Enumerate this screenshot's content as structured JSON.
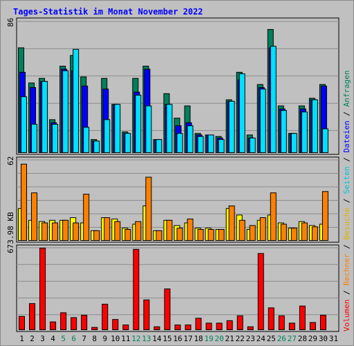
{
  "title": "Tages-Statistik im Monat November 2022",
  "colors": {
    "anfragen": "#00805c",
    "dateien": "#0000ff",
    "seiten": "#00e0ff",
    "besuche": "#ffff00",
    "rechner": "#ff8000",
    "volumen": "#ff0000",
    "weekend_label": "#00805c",
    "weekday_label": "#000000"
  },
  "axis_labels": {
    "anfragen_max": "86",
    "besuche_max": "62",
    "volumen_max": "673.98 KB"
  },
  "legend": {
    "volumen": "Volumen",
    "rechner": "Rechner",
    "besuche": "Besuche",
    "seiten": "Seiten",
    "dateien": "Dateien",
    "anfragen": "Anfragen",
    "sep": "/"
  },
  "chart_data": [
    {
      "type": "bar",
      "panel": "requests",
      "ylim": [
        0,
        86
      ],
      "categories": [
        "1",
        "2",
        "3",
        "4",
        "5",
        "6",
        "7",
        "8",
        "9",
        "10",
        "11",
        "12",
        "13",
        "14",
        "15",
        "16",
        "17",
        "18",
        "19",
        "20",
        "21",
        "22",
        "23",
        "24",
        "25",
        "26",
        "27",
        "28",
        "29",
        "30",
        "31"
      ],
      "weekend_days": [
        "5",
        "6",
        "12",
        "13",
        "19",
        "20",
        "26",
        "27"
      ],
      "series": [
        {
          "name": "Anfragen",
          "values": [
            69,
            46,
            49,
            22,
            57,
            64,
            50,
            9,
            49,
            32,
            14,
            49,
            57,
            9,
            39,
            23,
            31,
            13,
            12,
            11,
            35,
            53,
            12,
            45,
            81,
            31,
            13,
            31,
            36,
            45,
            0
          ]
        },
        {
          "name": "Dateien",
          "values": [
            53,
            43,
            47,
            20,
            55,
            54,
            44,
            8,
            42,
            32,
            13,
            40,
            55,
            9,
            32,
            18,
            20,
            12,
            12,
            10,
            34,
            48,
            10,
            43,
            69,
            29,
            13,
            29,
            35,
            44,
            0
          ]
        },
        {
          "name": "Seiten",
          "values": [
            37,
            19,
            47,
            19,
            54,
            68,
            17,
            8,
            22,
            32,
            13,
            38,
            31,
            9,
            32,
            13,
            18,
            11,
            12,
            9,
            34,
            52,
            10,
            42,
            70,
            28,
            13,
            27,
            35,
            16,
            0
          ]
        }
      ]
    },
    {
      "type": "bar",
      "panel": "visits",
      "ylim": [
        0,
        62
      ],
      "categories": [
        "1",
        "2",
        "3",
        "4",
        "5",
        "6",
        "7",
        "8",
        "9",
        "10",
        "11",
        "12",
        "13",
        "14",
        "15",
        "16",
        "17",
        "18",
        "19",
        "20",
        "21",
        "22",
        "23",
        "24",
        "25",
        "26",
        "27",
        "28",
        "29",
        "30",
        "31"
      ],
      "series": [
        {
          "name": "Besuche",
          "values": [
            25,
            16,
            15,
            16,
            16,
            18,
            14,
            8,
            18,
            17,
            10,
            13,
            27,
            8,
            16,
            12,
            14,
            10,
            10,
            9,
            25,
            20,
            9,
            16,
            20,
            14,
            10,
            15,
            12,
            13,
            0
          ]
        },
        {
          "name": "Rechner",
          "values": [
            59,
            37,
            14,
            14,
            16,
            14,
            36,
            8,
            18,
            15,
            9,
            15,
            49,
            8,
            16,
            10,
            17,
            9,
            9,
            9,
            27,
            16,
            12,
            18,
            37,
            13,
            10,
            14,
            11,
            38,
            0
          ]
        }
      ]
    },
    {
      "type": "bar",
      "panel": "volume",
      "ylim": [
        0,
        673.98
      ],
      "unit": "KB",
      "categories": [
        "1",
        "2",
        "3",
        "4",
        "5",
        "6",
        "7",
        "8",
        "9",
        "10",
        "11",
        "12",
        "13",
        "14",
        "15",
        "16",
        "17",
        "18",
        "19",
        "20",
        "21",
        "22",
        "23",
        "24",
        "25",
        "26",
        "27",
        "28",
        "29",
        "30",
        "31"
      ],
      "series": [
        {
          "name": "Volumen",
          "values": [
            115,
            220,
            674,
            70,
            145,
            105,
            125,
            25,
            215,
            90,
            45,
            664,
            250,
            30,
            340,
            45,
            45,
            100,
            60,
            60,
            80,
            120,
            30,
            630,
            185,
            120,
            60,
            200,
            65,
            125,
            0
          ]
        }
      ]
    }
  ]
}
